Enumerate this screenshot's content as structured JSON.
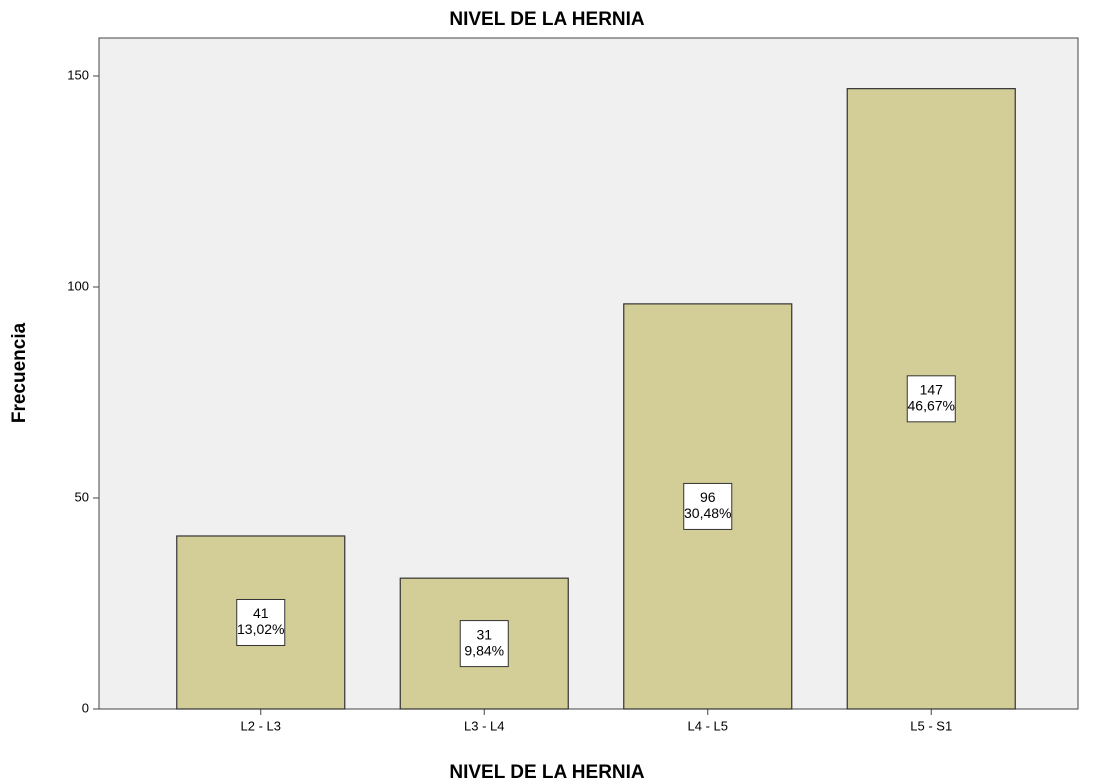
{
  "chart_data": {
    "type": "bar",
    "title": "NIVEL DE LA HERNIA",
    "x_label": "NIVEL DE LA HERNIA",
    "y_label": "Frecuencia",
    "categories": [
      "L2 - L3",
      "L3 - L4",
      "L4 - L5",
      "L5 - S1"
    ],
    "values": [
      41,
      31,
      96,
      147
    ],
    "percent_labels": [
      "13,02%",
      "9,84%",
      "30,48%",
      "46,67%"
    ],
    "color": "#d3ce97",
    "ylim": [
      0,
      159
    ],
    "yticks": [
      0,
      50,
      100,
      150
    ],
    "grid": false
  }
}
